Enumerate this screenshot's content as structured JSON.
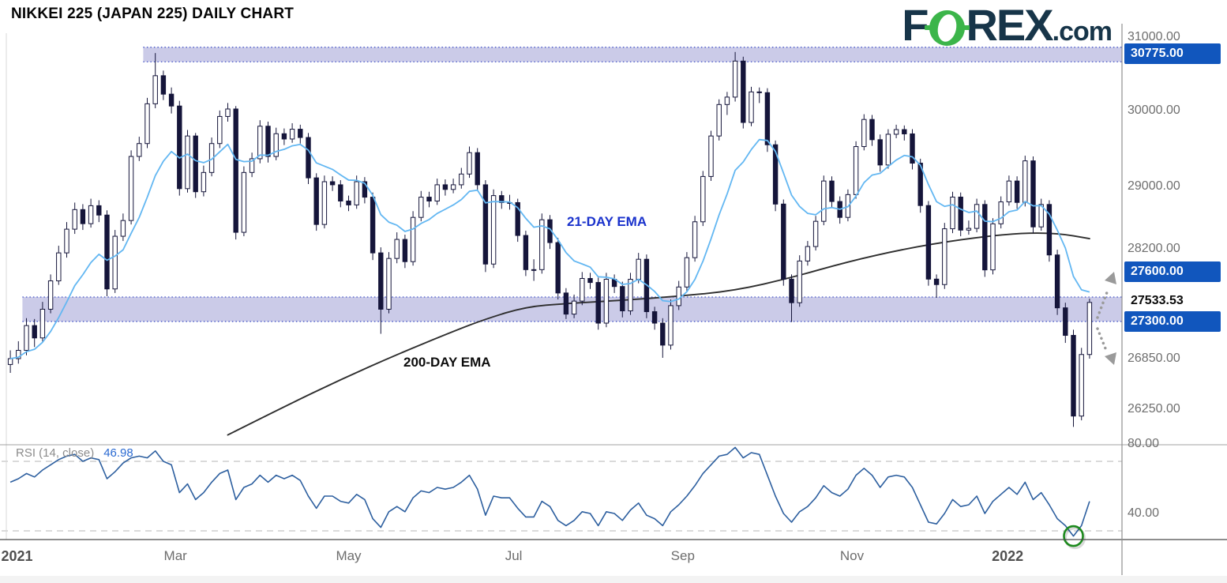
{
  "title": "NIKKEI 225 (JAPAN 225) DAILY CHART",
  "logo": {
    "letters_before": "F",
    "letters_after": "REX",
    "suffix": ".com"
  },
  "price_axis": {
    "ticks": [
      {
        "label": "31000.00",
        "value": 31000
      },
      {
        "label": "30000.00",
        "value": 30000
      },
      {
        "label": "29000.00",
        "value": 29000
      },
      {
        "label": "28200.00",
        "value": 28200
      },
      {
        "label": "26850.00",
        "value": 26850
      },
      {
        "label": "26250.00",
        "value": 26250
      }
    ],
    "badges": [
      {
        "label": "30775.00",
        "value": 30775
      },
      {
        "label": "27600.00",
        "value": 27600
      },
      {
        "label": "27300.00",
        "value": 27300
      }
    ],
    "current": {
      "label": "27533.53",
      "value": 27533.53
    }
  },
  "rsi_axis": {
    "ticks": [
      {
        "label": "80.00",
        "value": 80
      },
      {
        "label": "40.00",
        "value": 40
      }
    ]
  },
  "labels": {
    "ema21": "21-DAY EMA",
    "ema200": "200-DAY EMA",
    "rsi_legend": "RSI (14, close)",
    "rsi_value": "46.98"
  },
  "colors": {
    "badge_blue": "#1156bd",
    "candle": "#15153a",
    "ema21": "#63b7f2",
    "ema200": "#2e2e2e",
    "rsi_line": "#2d5f9f",
    "band_fill": "#b9b9e0",
    "band_border": "#4353c6",
    "guide_dash": "#c4c4c4",
    "arrow_gray": "#9a9a9a",
    "circle_green": "#1d8a1d",
    "logo_navy": "#173549",
    "logo_green": "#3cb54a"
  },
  "chart_data": {
    "type": "candlestick",
    "title": "NIKKEI 225 (JAPAN 225) DAILY CHART",
    "price_log_scale": true,
    "price_ylim": [
      25900,
      31100
    ],
    "price_axis_ticks": [
      31000,
      30000,
      29000,
      28200,
      26850,
      26250
    ],
    "support_resistance_levels": [
      30775,
      27600,
      27300
    ],
    "current_price": 27533.53,
    "x_labels": [
      {
        "label": "2021",
        "bar": 2,
        "year": true
      },
      {
        "label": "Mar",
        "bar": 20.5
      },
      {
        "label": "May",
        "bar": 42
      },
      {
        "label": "Jul",
        "bar": 62.5
      },
      {
        "label": "Sep",
        "bar": 83.5
      },
      {
        "label": "Nov",
        "bar": 104.5
      },
      {
        "label": "2022",
        "bar": 125,
        "year": true
      }
    ],
    "bands": [
      {
        "from": 30660,
        "to": 30860,
        "level": 30775,
        "start_bar": 17
      },
      {
        "from": 27300,
        "to": 27600,
        "start_bar": 2
      }
    ],
    "candles": [
      [
        26780,
        26950,
        26680,
        26850
      ],
      [
        26850,
        27060,
        26790,
        26950
      ],
      [
        26950,
        27340,
        26890,
        27250
      ],
      [
        27250,
        27330,
        26990,
        27100
      ],
      [
        27100,
        27540,
        27050,
        27450
      ],
      [
        27450,
        27880,
        27400,
        27800
      ],
      [
        27800,
        28240,
        27750,
        28150
      ],
      [
        28150,
        28540,
        28090,
        28450
      ],
      [
        28450,
        28790,
        28390,
        28700
      ],
      [
        28700,
        28770,
        28440,
        28520
      ],
      [
        28520,
        28840,
        28470,
        28750
      ],
      [
        28750,
        28820,
        28540,
        28630
      ],
      [
        28630,
        28690,
        27610,
        27700
      ],
      [
        27700,
        28440,
        27650,
        28360
      ],
      [
        28360,
        28650,
        28300,
        28560
      ],
      [
        28560,
        29470,
        28510,
        29390
      ],
      [
        29390,
        29650,
        29330,
        29560
      ],
      [
        29560,
        30170,
        29500,
        30090
      ],
      [
        30090,
        30780,
        30030,
        30470
      ],
      [
        30470,
        30540,
        30140,
        30220
      ],
      [
        30220,
        30310,
        29960,
        30060
      ],
      [
        30060,
        30130,
        28880,
        28970
      ],
      [
        28970,
        29740,
        28920,
        29660
      ],
      [
        29660,
        29700,
        28850,
        28930
      ],
      [
        28930,
        29270,
        28870,
        29180
      ],
      [
        29180,
        29640,
        29130,
        29560
      ],
      [
        29560,
        30000,
        29500,
        29920
      ],
      [
        29920,
        30100,
        29850,
        30020
      ],
      [
        30020,
        30060,
        28320,
        28410
      ],
      [
        28410,
        29260,
        28360,
        29180
      ],
      [
        29180,
        29440,
        29120,
        29360
      ],
      [
        29360,
        29870,
        29300,
        29790
      ],
      [
        29790,
        29850,
        29310,
        29390
      ],
      [
        29390,
        29770,
        29340,
        29690
      ],
      [
        29690,
        29760,
        29540,
        29620
      ],
      [
        29620,
        29830,
        29570,
        29750
      ],
      [
        29750,
        29810,
        29560,
        29640
      ],
      [
        29640,
        29700,
        29030,
        29110
      ],
      [
        29110,
        29170,
        28430,
        28510
      ],
      [
        28510,
        29140,
        28460,
        29060
      ],
      [
        29060,
        29130,
        28940,
        29020
      ],
      [
        29020,
        29080,
        28730,
        28810
      ],
      [
        28810,
        28880,
        28680,
        28760
      ],
      [
        28760,
        29140,
        28710,
        29060
      ],
      [
        29060,
        29120,
        28780,
        28860
      ],
      [
        28860,
        28920,
        28060,
        28150
      ],
      [
        28150,
        28220,
        27150,
        27450
      ],
      [
        27450,
        28160,
        27400,
        28080
      ],
      [
        28080,
        28410,
        28020,
        28320
      ],
      [
        28320,
        28380,
        27960,
        28040
      ],
      [
        28040,
        28680,
        27990,
        28600
      ],
      [
        28600,
        28940,
        28550,
        28860
      ],
      [
        28860,
        28930,
        28730,
        28810
      ],
      [
        28810,
        29100,
        28760,
        29020
      ],
      [
        29020,
        29090,
        28880,
        28960
      ],
      [
        28960,
        29100,
        28910,
        29020
      ],
      [
        29020,
        29240,
        28970,
        29160
      ],
      [
        29160,
        29520,
        29110,
        29440
      ],
      [
        29440,
        29500,
        28940,
        29020
      ],
      [
        29020,
        29080,
        27910,
        28010
      ],
      [
        28010,
        28960,
        27960,
        28880
      ],
      [
        28880,
        28940,
        28710,
        28790
      ],
      [
        28790,
        28890,
        28700,
        28790
      ],
      [
        28790,
        28840,
        28290,
        28370
      ],
      [
        28370,
        28430,
        27860,
        27940
      ],
      [
        27940,
        28070,
        27800,
        27940
      ],
      [
        27940,
        28650,
        27890,
        28570
      ],
      [
        28570,
        28630,
        28200,
        28280
      ],
      [
        28280,
        28340,
        27570,
        27650
      ],
      [
        27650,
        27710,
        27330,
        27390
      ],
      [
        27390,
        27630,
        27340,
        27550
      ],
      [
        27550,
        27910,
        27500,
        27830
      ],
      [
        27830,
        27900,
        27700,
        27780
      ],
      [
        27780,
        27840,
        27200,
        27280
      ],
      [
        27280,
        27900,
        27230,
        27820
      ],
      [
        27820,
        27880,
        27650,
        27730
      ],
      [
        27730,
        27790,
        27350,
        27430
      ],
      [
        27430,
        27900,
        27380,
        27820
      ],
      [
        27820,
        28150,
        27770,
        28070
      ],
      [
        28070,
        28130,
        27340,
        27420
      ],
      [
        27420,
        27480,
        27200,
        27280
      ],
      [
        27280,
        27340,
        26860,
        27013
      ],
      [
        27013,
        27570,
        26960,
        27494
      ],
      [
        27494,
        27800,
        27440,
        27724
      ],
      [
        27724,
        28160,
        27670,
        28090
      ],
      [
        28090,
        28620,
        28040,
        28544
      ],
      [
        28544,
        29200,
        28490,
        29128
      ],
      [
        29128,
        29730,
        29070,
        29660
      ],
      [
        29660,
        30150,
        29600,
        30080
      ],
      [
        30080,
        30250,
        29940,
        30180
      ],
      [
        30180,
        30795,
        30120,
        30670
      ],
      [
        30670,
        30730,
        29760,
        29840
      ],
      [
        29840,
        30320,
        29790,
        30250
      ],
      [
        30250,
        30310,
        30100,
        30240
      ],
      [
        30240,
        30300,
        29450,
        29544
      ],
      [
        29544,
        29600,
        28680,
        28771
      ],
      [
        28771,
        28830,
        27740,
        27822
      ],
      [
        27822,
        27880,
        27293,
        27530
      ],
      [
        27530,
        28120,
        27480,
        28048
      ],
      [
        28048,
        28300,
        27990,
        28230
      ],
      [
        28230,
        28620,
        28180,
        28550
      ],
      [
        28550,
        29140,
        28500,
        29069
      ],
      [
        29069,
        29130,
        28720,
        28804
      ],
      [
        28804,
        28870,
        28520,
        28600
      ],
      [
        28600,
        28960,
        28550,
        28893
      ],
      [
        28893,
        29590,
        28840,
        29520
      ],
      [
        29520,
        29950,
        29470,
        29880
      ],
      [
        29880,
        29940,
        29530,
        29611
      ],
      [
        29611,
        29680,
        29190,
        29278
      ],
      [
        29278,
        29750,
        29230,
        29683
      ],
      [
        29683,
        29810,
        29630,
        29745
      ],
      [
        29745,
        29800,
        29600,
        29688
      ],
      [
        29688,
        29750,
        29220,
        29302
      ],
      [
        29302,
        29360,
        28660,
        28752
      ],
      [
        28752,
        28810,
        27740,
        27822
      ],
      [
        27822,
        27880,
        27590,
        27754
      ],
      [
        27754,
        28530,
        27700,
        28455
      ],
      [
        28455,
        28930,
        28400,
        28861
      ],
      [
        28861,
        28920,
        28360,
        28438
      ],
      [
        28438,
        28560,
        28380,
        28460
      ],
      [
        28460,
        28840,
        28410,
        28766
      ],
      [
        28766,
        28820,
        27850,
        27937
      ],
      [
        27937,
        28590,
        27880,
        28518
      ],
      [
        28518,
        28870,
        28460,
        28799
      ],
      [
        28799,
        29140,
        28750,
        29069
      ],
      [
        29069,
        29130,
        28710,
        28792
      ],
      [
        28792,
        29400,
        28740,
        29332
      ],
      [
        29332,
        29390,
        28400,
        28479
      ],
      [
        28479,
        28840,
        28430,
        28766
      ],
      [
        28766,
        28820,
        28040,
        28124
      ],
      [
        28124,
        28190,
        27380,
        27467
      ],
      [
        27467,
        27530,
        27040,
        27131
      ],
      [
        27131,
        27200,
        26044,
        26170
      ],
      [
        26170,
        26980,
        26120,
        26900
      ],
      [
        26900,
        27580,
        26850,
        27533.53
      ]
    ],
    "overlays": {
      "ema21": {
        "label": "21-DAY EMA",
        "period_days": 21,
        "span_bars": 10.5,
        "source": "close"
      },
      "ema200": {
        "label": "200-DAY EMA",
        "period_days": 200,
        "points": [
          [
            27,
            25950
          ],
          [
            34,
            26280
          ],
          [
            41,
            26600
          ],
          [
            48,
            26900
          ],
          [
            55,
            27180
          ],
          [
            59,
            27330
          ],
          [
            64,
            27480
          ],
          [
            69,
            27520
          ],
          [
            76,
            27560
          ],
          [
            83,
            27610
          ],
          [
            90,
            27680
          ],
          [
            97,
            27840
          ],
          [
            104,
            28040
          ],
          [
            111,
            28200
          ],
          [
            118,
            28320
          ],
          [
            125,
            28400
          ],
          [
            130,
            28400
          ],
          [
            134,
            28330
          ]
        ]
      }
    },
    "rsi": {
      "label": "RSI (14, close)",
      "period": 14,
      "current": 46.98,
      "guides": [
        70,
        30
      ],
      "axis_ticks": [
        80,
        40
      ],
      "ylim": [
        22,
        80
      ],
      "values": [
        58,
        60,
        63,
        61,
        65,
        68,
        71,
        73,
        74,
        70,
        72,
        71,
        60,
        64,
        69,
        72,
        73,
        72,
        76,
        70,
        68,
        52,
        57,
        48,
        52,
        58,
        63,
        65,
        48,
        55,
        57,
        62,
        58,
        62,
        60,
        62,
        59,
        50,
        43,
        50,
        50,
        47,
        46,
        51,
        48,
        37,
        32,
        41,
        44,
        41,
        49,
        53,
        52,
        55,
        54,
        55,
        58,
        62,
        54,
        39,
        50,
        49,
        49,
        43,
        38,
        38,
        47,
        44,
        36,
        33,
        36,
        41,
        40,
        33,
        41,
        40,
        36,
        42,
        46,
        39,
        37,
        33,
        41,
        45,
        50,
        56,
        63,
        68,
        73,
        74,
        78,
        72,
        75,
        74,
        62,
        50,
        40,
        35,
        41,
        44,
        49,
        56,
        52,
        50,
        54,
        62,
        66,
        62,
        55,
        61,
        62,
        61,
        55,
        45,
        35,
        34,
        40,
        48,
        44,
        45,
        50,
        40,
        47,
        51,
        55,
        51,
        58,
        48,
        52,
        45,
        37,
        33,
        27,
        33,
        46.98
      ]
    },
    "annotations": {
      "rsi_circle_bar": 132,
      "arrows": [
        "dotted-arrow-up-to-27600",
        "dotted-arrow-down-below-27300"
      ]
    }
  }
}
